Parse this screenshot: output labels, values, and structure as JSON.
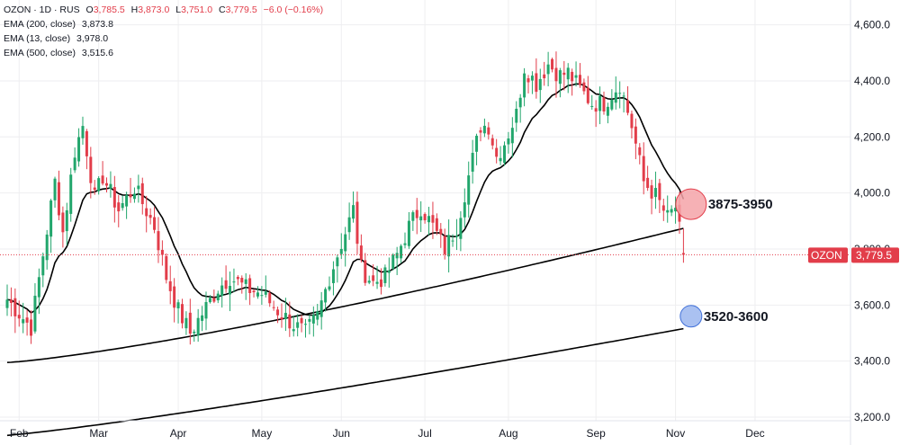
{
  "header": {
    "symbol_line": "OZON · 1D · RUS",
    "open_label": "O",
    "open": "3,785.5",
    "high_label": "H",
    "high": "3,873.0",
    "low_label": "L",
    "low": "3,751.0",
    "close_label": "C",
    "close": "3,779.5",
    "change": "−6.0 (−0.16%)",
    "ema200_label": "EMA (200, close)",
    "ema200": "3,873.8",
    "ema13_label": "EMA (13, close)",
    "ema13": "3,978.0",
    "ema500_label": "EMA (500, close)",
    "ema500": "3,515.6"
  },
  "price_badge": {
    "symbol": "OZON",
    "value": "3,779.5"
  },
  "colors": {
    "up": "#22a66c",
    "down": "#e23d4a",
    "ema": "#000000",
    "grid": "#eeeef0",
    "resistance": "#f4a3a8",
    "support": "#9bb6ef"
  },
  "chart_data": {
    "type": "candlestick",
    "ylim": [
      3200,
      4650
    ],
    "yticks": [
      {
        "value": 3200,
        "label": "3,200.0"
      },
      {
        "value": 3400,
        "label": "3,400.0"
      },
      {
        "value": 3600,
        "label": "3,600.0"
      },
      {
        "value": 3800,
        "label": "3,800.0"
      },
      {
        "value": 4000,
        "label": "4,000.0"
      },
      {
        "value": 4200,
        "label": "4,200.0"
      },
      {
        "value": 4400,
        "label": "4,400.0"
      },
      {
        "value": 4600,
        "label": "4,600.0"
      }
    ],
    "xticks": [
      {
        "index": 3,
        "label": "Feb"
      },
      {
        "index": 23,
        "label": "Mar"
      },
      {
        "index": 43,
        "label": "Apr"
      },
      {
        "index": 64,
        "label": "May"
      },
      {
        "index": 84,
        "label": "Jun"
      },
      {
        "index": 105,
        "label": "Jul"
      },
      {
        "index": 126,
        "label": "Aug"
      },
      {
        "index": 148,
        "label": "Sep"
      },
      {
        "index": 168,
        "label": "Nov"
      },
      {
        "index": 188,
        "label": "Dec"
      }
    ],
    "anchors": [
      [
        0,
        3620
      ],
      [
        6,
        3520
      ],
      [
        9,
        3780
      ],
      [
        12,
        4040
      ],
      [
        14,
        3860
      ],
      [
        17,
        4150
      ],
      [
        19,
        4240
      ],
      [
        22,
        3980
      ],
      [
        24,
        4060
      ],
      [
        28,
        3940
      ],
      [
        32,
        4020
      ],
      [
        37,
        3880
      ],
      [
        40,
        3700
      ],
      [
        43,
        3580
      ],
      [
        46,
        3500
      ],
      [
        49,
        3570
      ],
      [
        53,
        3660
      ],
      [
        56,
        3700
      ],
      [
        60,
        3660
      ],
      [
        64,
        3640
      ],
      [
        68,
        3580
      ],
      [
        72,
        3530
      ],
      [
        75,
        3500
      ],
      [
        78,
        3560
      ],
      [
        81,
        3700
      ],
      [
        84,
        3820
      ],
      [
        87,
        3940
      ],
      [
        89,
        3730
      ],
      [
        92,
        3680
      ],
      [
        95,
        3700
      ],
      [
        98,
        3780
      ],
      [
        101,
        3880
      ],
      [
        104,
        3950
      ],
      [
        107,
        3880
      ],
      [
        110,
        3800
      ],
      [
        113,
        3880
      ],
      [
        116,
        4060
      ],
      [
        119,
        4240
      ],
      [
        121,
        4240
      ],
      [
        123,
        4130
      ],
      [
        125,
        4180
      ],
      [
        128,
        4280
      ],
      [
        130,
        4450
      ],
      [
        133,
        4390
      ],
      [
        136,
        4460
      ],
      [
        139,
        4420
      ],
      [
        141,
        4430
      ],
      [
        144,
        4370
      ],
      [
        147,
        4320
      ],
      [
        150,
        4320
      ],
      [
        154,
        4390
      ],
      [
        157,
        4240
      ],
      [
        160,
        4040
      ],
      [
        163,
        3990
      ],
      [
        166,
        3910
      ],
      [
        168,
        3950
      ],
      [
        170,
        3779.5
      ]
    ],
    "last_candle": {
      "open": 3785.5,
      "high": 3873.0,
      "low": 3751.0,
      "close": 3779.5
    },
    "ema13_value": 3978.0,
    "ema200_value": 3873.8,
    "ema500_value": 3515.6,
    "zones": [
      {
        "label": "3875-3950",
        "price": 3960,
        "index": 171,
        "kind": "resistance"
      },
      {
        "label": "3520-3600",
        "price": 3560,
        "index": 171,
        "kind": "support"
      }
    ]
  }
}
